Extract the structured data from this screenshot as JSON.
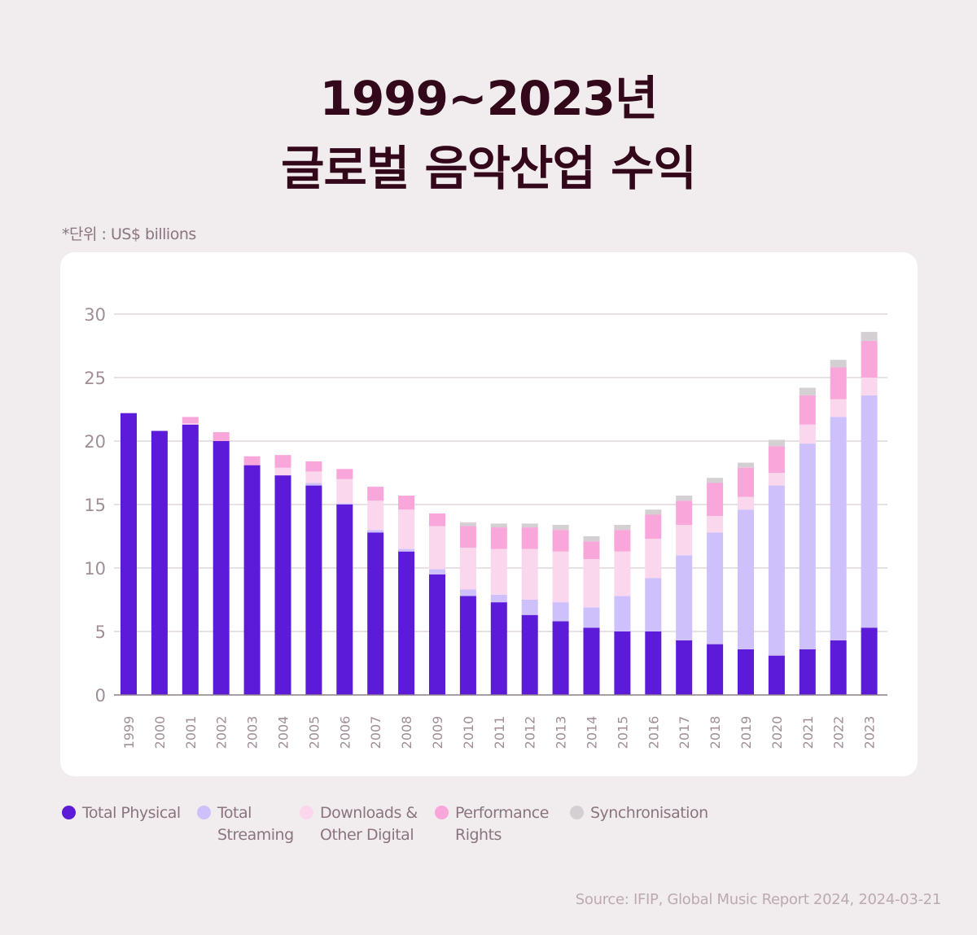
{
  "title_line1": "1999~2023년",
  "title_line2": "글로벌 음악산업 수익",
  "unit_note": "*단위 : US$ billions",
  "source": "Source: IFIP, Global Music Report 2024, 2024-03-21",
  "legend": [
    {
      "label": "Total Physical",
      "color": "#5b1bd8"
    },
    {
      "label": "Total\nStreaming",
      "color": "#cdc0fb"
    },
    {
      "label": "Downloads &\nOther Digital",
      "color": "#fad7ec"
    },
    {
      "label": "Performance\nRights",
      "color": "#f9a6da"
    },
    {
      "label": "Synchronisation",
      "color": "#d4cfd2"
    }
  ],
  "chart_data": {
    "type": "bar",
    "stacked": true,
    "ylim": [
      0,
      30
    ],
    "yticks": [
      0,
      5,
      10,
      15,
      20,
      25,
      30
    ],
    "grid": true,
    "categories": [
      "1999",
      "2000",
      "2001",
      "2002",
      "2003",
      "2004",
      "2005",
      "2006",
      "2007",
      "2008",
      "2009",
      "2010",
      "2011",
      "2012",
      "2013",
      "2014",
      "2015",
      "2016",
      "2017",
      "2018",
      "2019",
      "2020",
      "2021",
      "2022",
      "2023"
    ],
    "series": [
      {
        "name": "Total Physical",
        "color": "#5b1bd8",
        "values": [
          22.2,
          20.8,
          21.3,
          20.0,
          18.1,
          17.3,
          16.5,
          15.0,
          12.8,
          11.3,
          9.5,
          7.8,
          7.3,
          6.3,
          5.8,
          5.3,
          5.0,
          5.0,
          4.3,
          4.0,
          3.6,
          3.1,
          3.6,
          4.3,
          5.3
        ]
      },
      {
        "name": "Total Streaming",
        "color": "#cdc0fb",
        "values": [
          0,
          0,
          0,
          0,
          0,
          0,
          0.2,
          0.1,
          0.2,
          0.2,
          0.4,
          0.5,
          0.6,
          1.2,
          1.5,
          1.6,
          2.8,
          4.2,
          6.7,
          8.8,
          11.0,
          13.4,
          16.2,
          17.6,
          18.3
        ]
      },
      {
        "name": "Downloads & Other Digital",
        "color": "#fad7ec",
        "values": [
          0,
          0,
          0.1,
          0,
          0,
          0.6,
          0.9,
          1.9,
          2.3,
          3.1,
          3.4,
          3.3,
          3.6,
          4.0,
          4.0,
          3.8,
          3.5,
          3.1,
          2.4,
          1.3,
          1.0,
          1.0,
          1.5,
          1.4,
          1.4
        ]
      },
      {
        "name": "Performance Rights",
        "color": "#f9a6da",
        "values": [
          0,
          0,
          0.5,
          0.7,
          0.7,
          1.0,
          0.8,
          0.8,
          1.1,
          1.1,
          1.0,
          1.7,
          1.7,
          1.7,
          1.7,
          1.4,
          1.7,
          1.9,
          1.9,
          2.6,
          2.3,
          2.1,
          2.3,
          2.5,
          2.9
        ]
      },
      {
        "name": "Synchronisation",
        "color": "#d4cfd2",
        "values": [
          0,
          0,
          0,
          0,
          0,
          0,
          0,
          0,
          0,
          0,
          0,
          0.3,
          0.3,
          0.3,
          0.4,
          0.4,
          0.4,
          0.4,
          0.4,
          0.4,
          0.4,
          0.5,
          0.6,
          0.6,
          0.7
        ]
      }
    ]
  }
}
